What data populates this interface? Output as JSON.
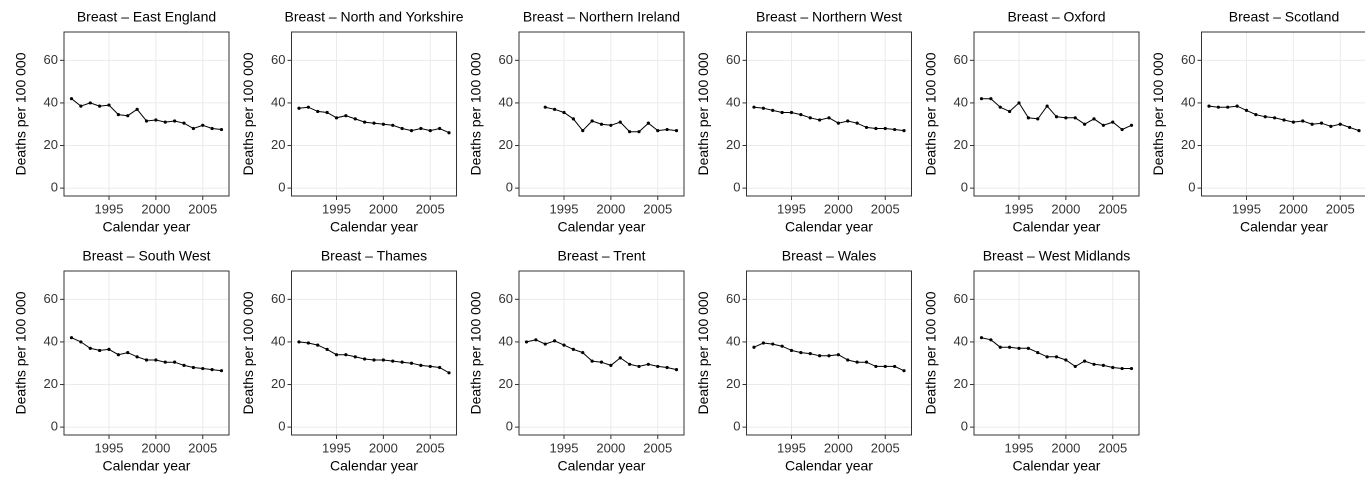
{
  "chart_data": [
    {
      "type": "line",
      "title": "Breast – East England",
      "xlabel": "Calendar year",
      "ylabel": "Deaths per 100 000",
      "x": [
        1991,
        1992,
        1993,
        1994,
        1995,
        1996,
        1997,
        1998,
        1999,
        2000,
        2001,
        2002,
        2003,
        2004,
        2005,
        2006,
        2007
      ],
      "values": [
        42,
        38.5,
        40,
        38.5,
        39,
        34.5,
        34,
        37,
        31.5,
        32,
        31,
        31.5,
        30.5,
        28,
        29.5,
        28,
        27.5
      ],
      "color": "#000000",
      "xlim": [
        1990.2,
        2007.8
      ],
      "ylim": [
        -3.7,
        73.3
      ],
      "xticks": [
        1995,
        2000,
        2005
      ],
      "yticks": [
        0,
        20,
        40,
        60
      ],
      "grid": true
    },
    {
      "type": "line",
      "title": "Breast – North and Yorkshire",
      "xlabel": "Calendar year",
      "ylabel": "Deaths per 100 000",
      "x": [
        1991,
        1992,
        1993,
        1994,
        1995,
        1996,
        1997,
        1998,
        1999,
        2000,
        2001,
        2002,
        2003,
        2004,
        2005,
        2006,
        2007
      ],
      "values": [
        37.5,
        38,
        36,
        35.5,
        33,
        34,
        32.5,
        31,
        30.5,
        30,
        29.5,
        28,
        27,
        28,
        27,
        28,
        26
      ],
      "color": "#000000",
      "xlim": [
        1990.2,
        2007.8
      ],
      "ylim": [
        -3.7,
        73.3
      ],
      "xticks": [
        1995,
        2000,
        2005
      ],
      "yticks": [
        0,
        20,
        40,
        60
      ],
      "grid": true
    },
    {
      "type": "line",
      "title": "Breast – Northern Ireland",
      "xlabel": "Calendar year",
      "ylabel": "Deaths per 100 000",
      "x": [
        1993,
        1994,
        1995,
        1996,
        1997,
        1998,
        1999,
        2000,
        2001,
        2002,
        2003,
        2004,
        2005,
        2006,
        2007
      ],
      "values": [
        38,
        37,
        35.5,
        32.5,
        27,
        31.5,
        30,
        29.5,
        31,
        26.5,
        26.5,
        30.5,
        27,
        27.5,
        27
      ],
      "color": "#000000",
      "xlim": [
        1990.2,
        2007.8
      ],
      "ylim": [
        -3.7,
        73.3
      ],
      "xticks": [
        1995,
        2000,
        2005
      ],
      "yticks": [
        0,
        20,
        40,
        60
      ],
      "grid": true
    },
    {
      "type": "line",
      "title": "Breast – Northern West",
      "xlabel": "Calendar year",
      "ylabel": "Deaths per 100 000",
      "x": [
        1991,
        1992,
        1993,
        1994,
        1995,
        1996,
        1997,
        1998,
        1999,
        2000,
        2001,
        2002,
        2003,
        2004,
        2005,
        2006,
        2007
      ],
      "values": [
        38,
        37.5,
        36.5,
        35.5,
        35.5,
        34.5,
        33,
        32,
        33,
        30.5,
        31.5,
        30.5,
        28.5,
        28,
        28,
        27.5,
        27
      ],
      "color": "#000000",
      "xlim": [
        1990.2,
        2007.8
      ],
      "ylim": [
        -3.7,
        73.3
      ],
      "xticks": [
        1995,
        2000,
        2005
      ],
      "yticks": [
        0,
        20,
        40,
        60
      ],
      "grid": true
    },
    {
      "type": "line",
      "title": "Breast – Oxford",
      "xlabel": "Calendar year",
      "ylabel": "Deaths per 100 000",
      "x": [
        1991,
        1992,
        1993,
        1994,
        1995,
        1996,
        1997,
        1998,
        1999,
        2000,
        2001,
        2002,
        2003,
        2004,
        2005,
        2006,
        2007
      ],
      "values": [
        42,
        42,
        38,
        36,
        40,
        33,
        32.5,
        38.5,
        33.5,
        33,
        33,
        30,
        32.5,
        29.5,
        31,
        27.5,
        29.5
      ],
      "color": "#000000",
      "xlim": [
        1990.2,
        2007.8
      ],
      "ylim": [
        -3.7,
        73.3
      ],
      "xticks": [
        1995,
        2000,
        2005
      ],
      "yticks": [
        0,
        20,
        40,
        60
      ],
      "grid": true
    },
    {
      "type": "line",
      "title": "Breast – Scotland",
      "xlabel": "Calendar year",
      "ylabel": "Deaths per 100 000",
      "x": [
        1991,
        1992,
        1993,
        1994,
        1995,
        1996,
        1997,
        1998,
        1999,
        2000,
        2001,
        2002,
        2003,
        2004,
        2005,
        2006,
        2007
      ],
      "values": [
        38.5,
        38,
        38,
        38.5,
        36.5,
        34.5,
        33.5,
        33,
        32,
        31,
        31.5,
        30,
        30.5,
        29,
        30,
        28.5,
        27
      ],
      "color": "#000000",
      "xlim": [
        1990.2,
        2007.8
      ],
      "ylim": [
        -3.7,
        73.3
      ],
      "xticks": [
        1995,
        2000,
        2005
      ],
      "yticks": [
        0,
        20,
        40,
        60
      ],
      "grid": true
    },
    {
      "type": "line",
      "title": "Breast – South West",
      "xlabel": "Calendar year",
      "ylabel": "Deaths per 100 000",
      "x": [
        1991,
        1992,
        1993,
        1994,
        1995,
        1996,
        1997,
        1998,
        1999,
        2000,
        2001,
        2002,
        2003,
        2004,
        2005,
        2006,
        2007
      ],
      "values": [
        42,
        40,
        37,
        36,
        36.5,
        34,
        35,
        33,
        31.5,
        31.5,
        30.5,
        30.5,
        29,
        28,
        27.5,
        27,
        26.5
      ],
      "color": "#000000",
      "xlim": [
        1990.2,
        2007.8
      ],
      "ylim": [
        -3.7,
        73.3
      ],
      "xticks": [
        1995,
        2000,
        2005
      ],
      "yticks": [
        0,
        20,
        40,
        60
      ],
      "grid": true
    },
    {
      "type": "line",
      "title": "Breast – Thames",
      "xlabel": "Calendar year",
      "ylabel": "Deaths per 100 000",
      "x": [
        1991,
        1992,
        1993,
        1994,
        1995,
        1996,
        1997,
        1998,
        1999,
        2000,
        2001,
        2002,
        2003,
        2004,
        2005,
        2006,
        2007
      ],
      "values": [
        40,
        39.5,
        38.5,
        36.5,
        34,
        34,
        33,
        32,
        31.5,
        31.5,
        31,
        30.5,
        30,
        29,
        28.5,
        28,
        25.5
      ],
      "color": "#000000",
      "xlim": [
        1990.2,
        2007.8
      ],
      "ylim": [
        -3.7,
        73.3
      ],
      "xticks": [
        1995,
        2000,
        2005
      ],
      "yticks": [
        0,
        20,
        40,
        60
      ],
      "grid": true
    },
    {
      "type": "line",
      "title": "Breast – Trent",
      "xlabel": "Calendar year",
      "ylabel": "Deaths per 100 000",
      "x": [
        1991,
        1992,
        1993,
        1994,
        1995,
        1996,
        1997,
        1998,
        1999,
        2000,
        2001,
        2002,
        2003,
        2004,
        2005,
        2006,
        2007
      ],
      "values": [
        40,
        41,
        39,
        40.5,
        38.5,
        36.5,
        35,
        31,
        30.5,
        29,
        32.5,
        29.5,
        28.5,
        29.5,
        28.5,
        28,
        27
      ],
      "color": "#000000",
      "xlim": [
        1990.2,
        2007.8
      ],
      "ylim": [
        -3.7,
        73.3
      ],
      "xticks": [
        1995,
        2000,
        2005
      ],
      "yticks": [
        0,
        20,
        40,
        60
      ],
      "grid": true
    },
    {
      "type": "line",
      "title": "Breast – Wales",
      "xlabel": "Calendar year",
      "ylabel": "Deaths per 100 000",
      "x": [
        1991,
        1992,
        1993,
        1994,
        1995,
        1996,
        1997,
        1998,
        1999,
        2000,
        2001,
        2002,
        2003,
        2004,
        2005,
        2006,
        2007
      ],
      "values": [
        37.5,
        39.5,
        39,
        38,
        36,
        35,
        34.5,
        33.5,
        33.5,
        34,
        31.5,
        30.5,
        30.5,
        28.5,
        28.5,
        28.5,
        26.5
      ],
      "color": "#000000",
      "xlim": [
        1990.2,
        2007.8
      ],
      "ylim": [
        -3.7,
        73.3
      ],
      "xticks": [
        1995,
        2000,
        2005
      ],
      "yticks": [
        0,
        20,
        40,
        60
      ],
      "grid": true
    },
    {
      "type": "line",
      "title": "Breast – West Midlands",
      "xlabel": "Calendar year",
      "ylabel": "Deaths per 100 000",
      "x": [
        1991,
        1992,
        1993,
        1994,
        1995,
        1996,
        1997,
        1998,
        1999,
        2000,
        2001,
        2002,
        2003,
        2004,
        2005,
        2006,
        2007
      ],
      "values": [
        42,
        41,
        37.5,
        37.5,
        37,
        37,
        35,
        33,
        33,
        31.5,
        28.5,
        31,
        29.5,
        29,
        28,
        27.5,
        27.5
      ],
      "color": "#000000",
      "xlim": [
        1990.2,
        2007.8
      ],
      "ylim": [
        -3.7,
        73.3
      ],
      "xticks": [
        1995,
        2000,
        2005
      ],
      "yticks": [
        0,
        20,
        40,
        60
      ],
      "grid": true
    }
  ]
}
